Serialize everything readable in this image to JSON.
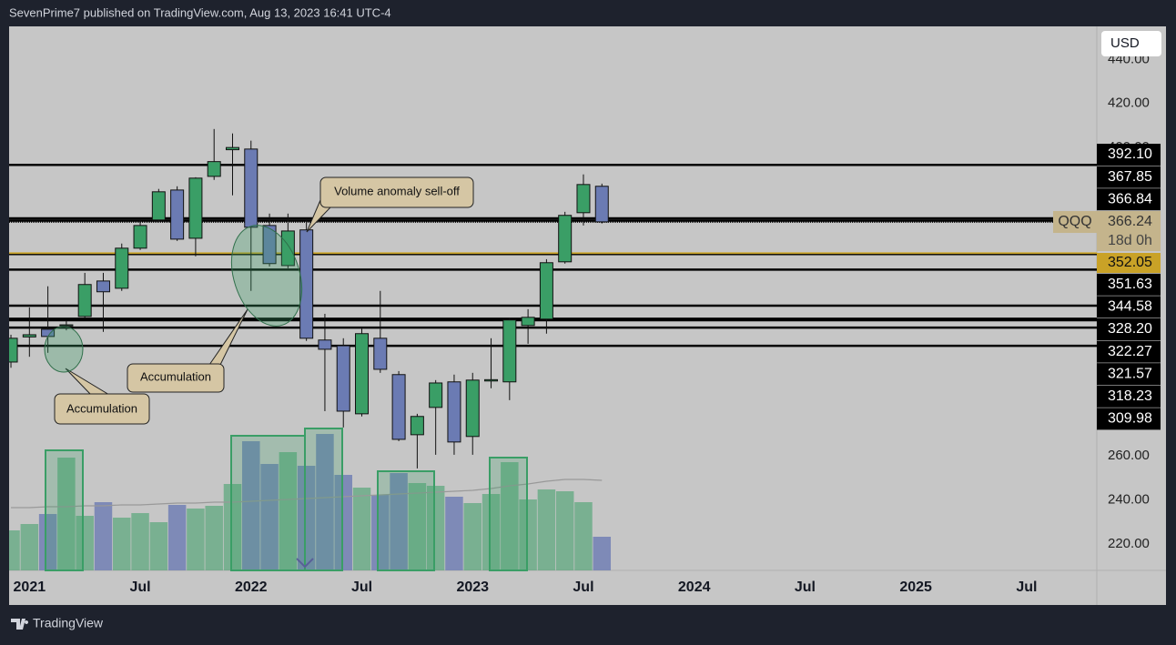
{
  "header": "SevenPrime7 published on TradingView.com, Aug 13, 2023 16:41 UTC-4",
  "footer_brand": "TradingView",
  "chart_data": {
    "type": "candlestick",
    "currency": "USD",
    "symbol": "QQQ",
    "countdown": "18d 0h",
    "up_color": "#3a9e66",
    "down_color": "#6b7bb3",
    "line_color": "#000000",
    "gold_color": "#c9a227",
    "xlim": [
      -0.1,
      58.8
    ],
    "xticks": [
      {
        "value": 1,
        "label": "2021"
      },
      {
        "value": 7,
        "label": "Jul"
      },
      {
        "value": 13,
        "label": "2022"
      },
      {
        "value": 19,
        "label": "Jul"
      },
      {
        "value": 25,
        "label": "2023"
      },
      {
        "value": 31,
        "label": "Jul"
      },
      {
        "value": 37,
        "label": "2024"
      },
      {
        "value": 43,
        "label": "Jul"
      },
      {
        "value": 49,
        "label": "2025"
      },
      {
        "value": 55,
        "label": "Jul"
      }
    ],
    "ylim": [
      208,
      455
    ],
    "yticks": [
      {
        "value": 220,
        "label": "220.00"
      },
      {
        "value": 240,
        "label": "240.00"
      },
      {
        "value": 260,
        "label": "260.00"
      },
      {
        "value": 400,
        "label": "400.00"
      },
      {
        "value": 420,
        "label": "420.00"
      },
      {
        "value": 440,
        "label": "440.00"
      }
    ],
    "grid": false,
    "open": [
      302.6,
      314,
      317.5,
      319,
      323.3,
      339.4,
      336.1,
      354.3,
      367.1,
      380.7,
      358.8,
      386.9,
      399,
      399.3,
      364.6,
      346.4,
      362.6,
      312.6,
      310,
      279.1,
      313.4,
      296.9,
      269.6,
      282,
      293.6,
      268.8,
      294,
      293.6,
      319.2,
      322.1,
      348.1,
      370.4,
      382.4
    ],
    "high": [
      315,
      327.4,
      337,
      321.7,
      343.1,
      343.1,
      356.4,
      367.9,
      381.2,
      382.4,
      386.5,
      408.4,
      406.4,
      403.1,
      370,
      370,
      367.9,
      324.5,
      313.4,
      318.3,
      334.9,
      298.5,
      279.1,
      294.4,
      296.9,
      297.7,
      313.4,
      322.5,
      326.6,
      349.3,
      370.8,
      387.8,
      383.6
    ],
    "low": [
      300,
      305,
      306.8,
      317,
      322.5,
      316.3,
      334.9,
      353.5,
      365.9,
      357.6,
      350.6,
      385.3,
      378.3,
      334.9,
      346,
      345.2,
      312.2,
      280.3,
      272.9,
      277.9,
      297.7,
      266.7,
      254.3,
      260.5,
      260.5,
      260.5,
      290.7,
      285.3,
      310.9,
      315.5,
      347.3,
      364.6,
      365.5
    ],
    "close": [
      313.4,
      315,
      314.2,
      319.5,
      337.8,
      334.5,
      354.3,
      364.6,
      379.9,
      358.4,
      386.1,
      393.6,
      400,
      363.8,
      347.3,
      362.1,
      313.4,
      308.4,
      280.3,
      315.5,
      299.3,
      267.5,
      277.9,
      293.1,
      266.3,
      294.4,
      294.6,
      321.7,
      322.9,
      347.7,
      369.2,
      383.2,
      366.24
    ],
    "vlim": [
      0,
      598
    ],
    "volume": [
      44,
      51,
      62,
      124,
      60,
      75,
      58,
      63,
      53,
      72,
      68,
      71,
      95,
      142,
      117,
      130,
      115,
      150,
      105,
      91,
      83,
      107,
      96,
      93,
      81,
      74,
      84,
      119,
      78,
      89,
      87,
      75,
      37
    ],
    "volume_ma": [
      69,
      69,
      70,
      70,
      71,
      71,
      72,
      72,
      73,
      74,
      74,
      75,
      75,
      76,
      77,
      78,
      79,
      80,
      81,
      82,
      83,
      84,
      85,
      86,
      87,
      88,
      90,
      93,
      95,
      98,
      100,
      100,
      99
    ],
    "last_price": 366.24,
    "gold_line": 352.05,
    "price_lines": [
      {
        "value": 392.1,
        "label": "392.10"
      },
      367.85,
      366.84,
      351.63,
      344.58,
      {
        "value": 328.2,
        "label": "328.20"
      },
      322.27,
      321.57,
      318.23,
      309.98
    ],
    "annotations": [
      "Volume anomaly sell-off",
      "Accumulation",
      "Accumulation"
    ]
  }
}
